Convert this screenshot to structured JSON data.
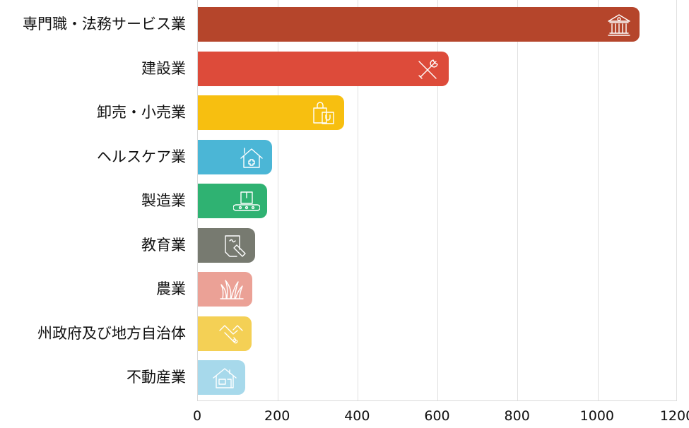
{
  "chart_data": {
    "type": "bar",
    "orientation": "horizontal",
    "title": "",
    "xlabel": "",
    "ylabel": "",
    "xlim": [
      0,
      1200
    ],
    "x_ticks": [
      "0",
      "200",
      "400",
      "600",
      "800",
      "1000",
      "1200"
    ],
    "grid": true,
    "legend": null,
    "categories": [
      "専門職・法務サービス業",
      "建設業",
      "卸売・小売業",
      "ヘルスケア業",
      "製造業",
      "教育業",
      "農業",
      "州政府及び地方自治体",
      "不動産業"
    ],
    "values": [
      1104,
      628,
      365,
      186,
      173,
      143,
      136,
      135,
      119
    ],
    "colors": [
      "#b5452b",
      "#dd4b3a",
      "#f7bf10",
      "#4bb6d6",
      "#2fb272",
      "#777a70",
      "#eba196",
      "#f4d055",
      "#a7d9eb"
    ],
    "icons": [
      "courthouse-icon",
      "tools-icon",
      "shopping-bags-icon",
      "healthcare-house-icon",
      "conveyor-belt-icon",
      "pen-paper-icon",
      "grass-icon",
      "handshake-icon",
      "house-icon"
    ]
  }
}
